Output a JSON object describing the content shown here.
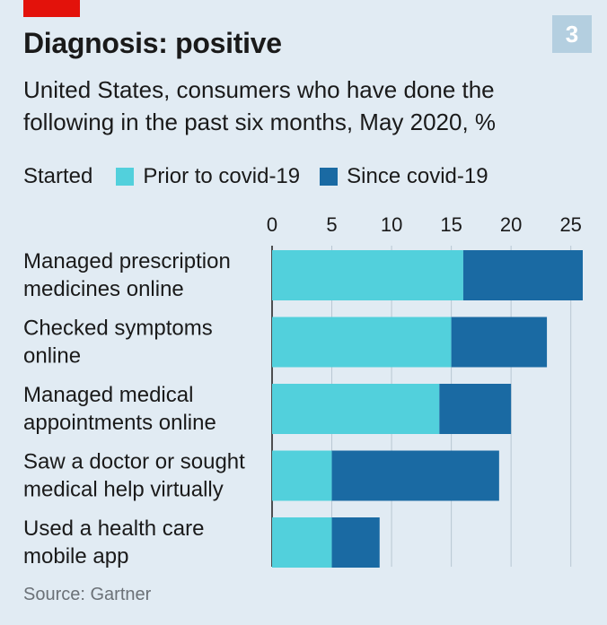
{
  "badge": "3",
  "title": "Diagnosis: positive",
  "subtitle": "United States, consumers who have done the following in the past six months, May 2020, %",
  "legend": {
    "title": "Started",
    "items": [
      {
        "label": "Prior to covid-19",
        "color": "#52d0dc"
      },
      {
        "label": "Since covid-19",
        "color": "#1a6aa3"
      }
    ]
  },
  "source": "Source: Gartner",
  "chart_data": {
    "type": "bar",
    "orientation": "horizontal",
    "stacked": true,
    "categories": [
      [
        "Managed prescription",
        "medicines online"
      ],
      [
        "Checked symptoms",
        "online"
      ],
      [
        "Managed medical",
        "appointments online"
      ],
      [
        "Saw a doctor or sought",
        "medical help virtually"
      ],
      [
        "Used a health care",
        "mobile app"
      ]
    ],
    "series": [
      {
        "name": "Prior to covid-19",
        "color": "#52d0dc",
        "values": [
          16,
          15,
          14,
          5,
          5
        ]
      },
      {
        "name": "Since covid-19",
        "color": "#1a6aa3",
        "values": [
          10,
          8,
          6,
          14,
          4
        ]
      }
    ],
    "xlim": [
      0,
      26
    ],
    "xticks": [
      0,
      5,
      10,
      15,
      20,
      25
    ],
    "axis_position": "top",
    "grid": true
  }
}
